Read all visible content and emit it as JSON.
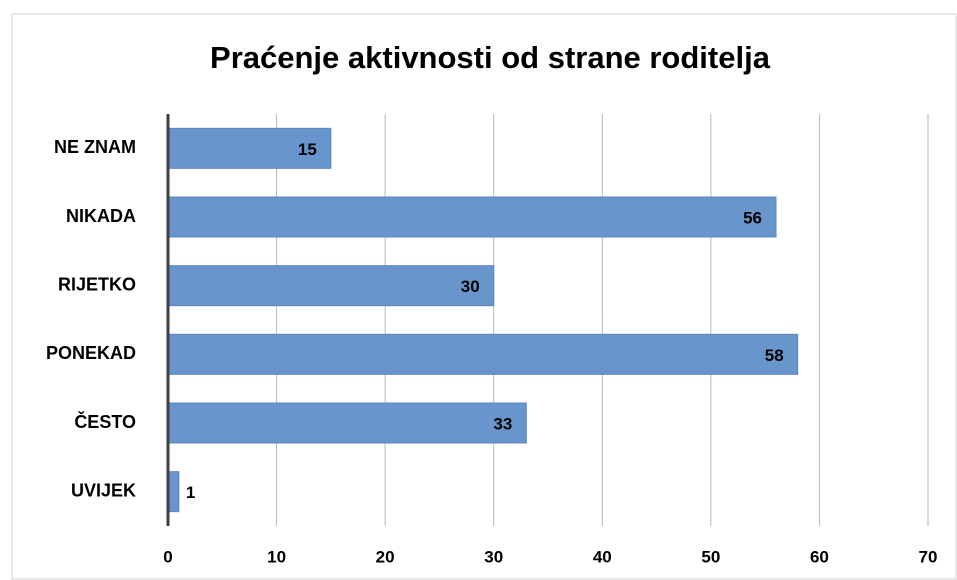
{
  "chart_data": {
    "type": "bar",
    "orientation": "horizontal",
    "title": "Praćenje aktivnosti od strane roditelja",
    "categories": [
      "NE ZNAM",
      "NIKADA",
      "RIJETKO",
      "PONEKAD",
      "ČESTO",
      "UVIJEK"
    ],
    "values": [
      15,
      56,
      30,
      58,
      33,
      1
    ],
    "color": "#6895cb",
    "xlim": [
      0,
      70
    ],
    "xticks": [
      0,
      10,
      20,
      30,
      40,
      50,
      60,
      70
    ],
    "grid": true
  }
}
